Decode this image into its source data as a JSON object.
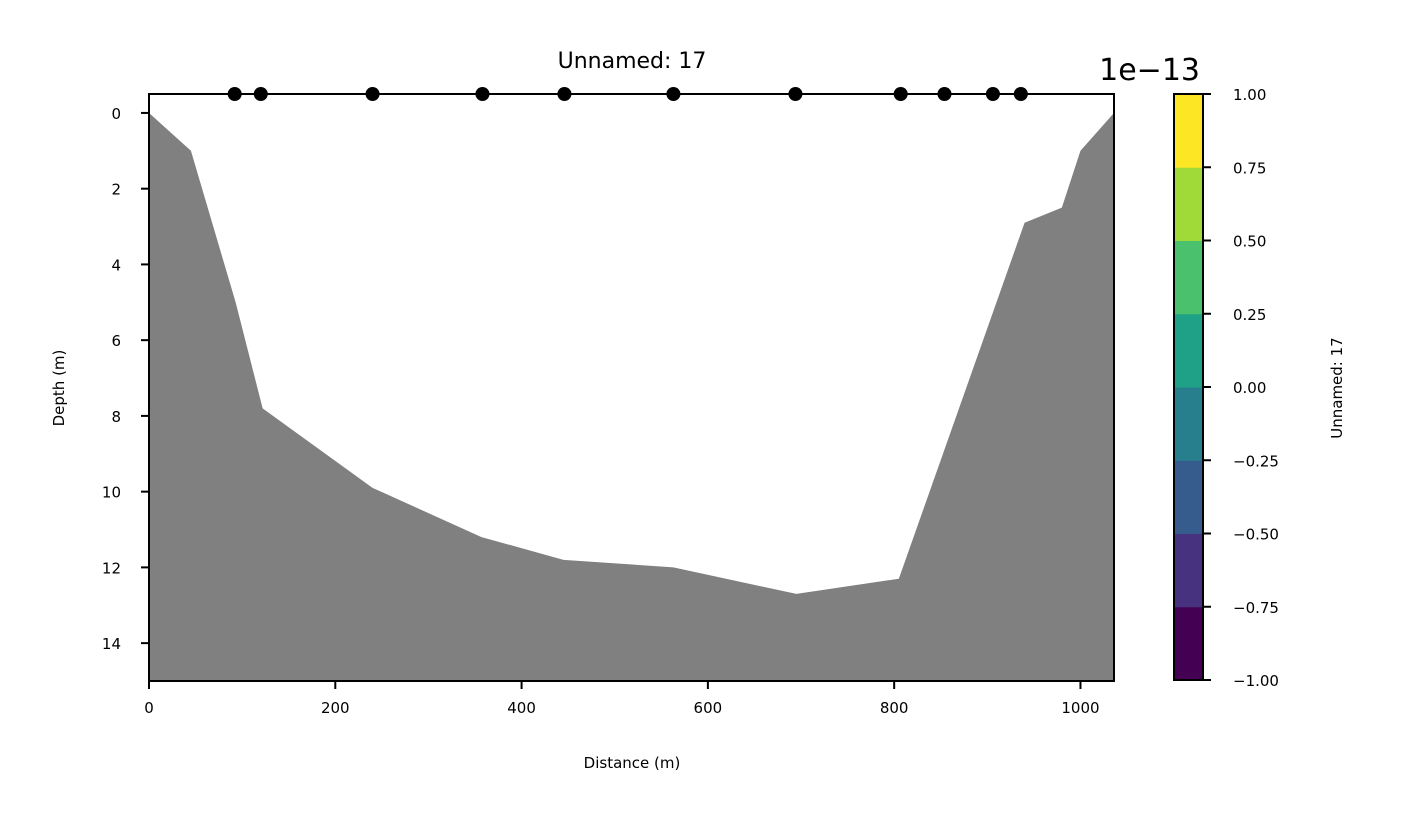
{
  "chart_data": {
    "type": "area",
    "title": "Unnamed: 17",
    "xlabel": "Distance (m)",
    "ylabel": "Depth (m)",
    "xlim": [
      0,
      1036
    ],
    "ylim": [
      15,
      -0.5
    ],
    "y_inverted": true,
    "grid": false,
    "xticks": [
      0,
      200,
      400,
      600,
      800,
      1000
    ],
    "yticks": [
      0,
      2,
      4,
      6,
      8,
      10,
      12,
      14
    ],
    "bathymetry": {
      "fill_color": "#808080",
      "x": [
        0,
        45,
        93,
        122,
        240,
        357,
        445,
        563,
        695,
        805,
        940,
        980,
        1000,
        1036
      ],
      "depth": [
        0,
        1,
        5,
        7.8,
        9.9,
        11.2,
        11.8,
        12,
        12.7,
        12.3,
        2.9,
        2.5,
        1,
        0
      ]
    },
    "stations": {
      "marker_color": "#000000",
      "x": [
        92,
        120,
        240,
        358,
        446,
        563,
        694,
        807,
        854,
        906,
        936
      ],
      "depth": [
        -0.5,
        -0.5,
        -0.5,
        -0.5,
        -0.5,
        -0.5,
        -0.5,
        -0.5,
        -0.5,
        -0.5,
        -0.5
      ]
    },
    "colorbar": {
      "label": "Unnamed: 17",
      "exponent_label": "1e−13",
      "ticks": [
        "1.00",
        "0.75",
        "0.50",
        "0.25",
        "0.00",
        "−0.25",
        "−0.50",
        "−0.75",
        "−1.00"
      ],
      "colors": [
        "#440154",
        "#46327e",
        "#365c8d",
        "#277f8e",
        "#1fa187",
        "#4ac16d",
        "#a0da39",
        "#fde725"
      ]
    }
  }
}
